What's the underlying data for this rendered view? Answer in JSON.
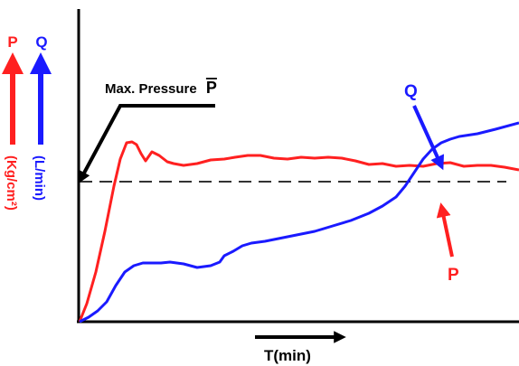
{
  "chart_data": {
    "type": "line",
    "title": "",
    "xlabel": "T(min)",
    "ylabels": {
      "pressure": {
        "symbol": "P",
        "unit": "(Kg/cm²)"
      },
      "flow": {
        "symbol": "Q",
        "unit": "(L/min)"
      }
    },
    "annotations": {
      "max_pressure_prefix": "Max. Pressure",
      "max_pressure_symbol": "P",
      "curve_label_q": "Q",
      "curve_label_p": "P"
    },
    "max_pressure_level": 200,
    "xlim": [
      0,
      486
    ],
    "ylim": [
      0,
      345
    ],
    "series": [
      {
        "name": "P",
        "color": "#ff2020",
        "x": [
          0,
          8,
          18,
          28,
          38,
          45,
          52,
          58,
          63,
          68,
          73,
          80,
          88,
          97,
          104,
          115,
          130,
          145,
          160,
          172,
          186,
          200,
          215,
          230,
          245,
          260,
          275,
          290,
          305,
          320,
          335,
          350,
          365,
          380,
          395,
          410,
          425,
          440,
          455,
          470,
          486
        ],
        "y": [
          0,
          20,
          55,
          100,
          150,
          180,
          198,
          199,
          196,
          186,
          178,
          188,
          184,
          177,
          175,
          173,
          175,
          179,
          180,
          182,
          184,
          184,
          181,
          180,
          182,
          181,
          182,
          181,
          178,
          174,
          175,
          172,
          173,
          172,
          175,
          176,
          172,
          173,
          173,
          171,
          168
        ]
      },
      {
        "name": "Q",
        "color": "#1a1aff",
        "x": [
          0,
          10,
          20,
          30,
          40,
          50,
          60,
          70,
          80,
          90,
          100,
          115,
          130,
          145,
          155,
          160,
          170,
          180,
          190,
          205,
          220,
          240,
          260,
          280,
          300,
          320,
          335,
          350,
          360,
          370,
          380,
          390,
          400,
          410,
          420,
          440,
          460,
          486
        ],
        "y": [
          0,
          5,
          12,
          22,
          40,
          55,
          62,
          65,
          65,
          65,
          66,
          64,
          60,
          62,
          66,
          73,
          78,
          84,
          87,
          89,
          92,
          96,
          100,
          106,
          112,
          120,
          128,
          138,
          150,
          165,
          180,
          191,
          198,
          202,
          205,
          208,
          213,
          220
        ]
      }
    ]
  },
  "colors": {
    "pressure": "#ff2020",
    "flow": "#1a1aff",
    "axis": "#000000"
  }
}
